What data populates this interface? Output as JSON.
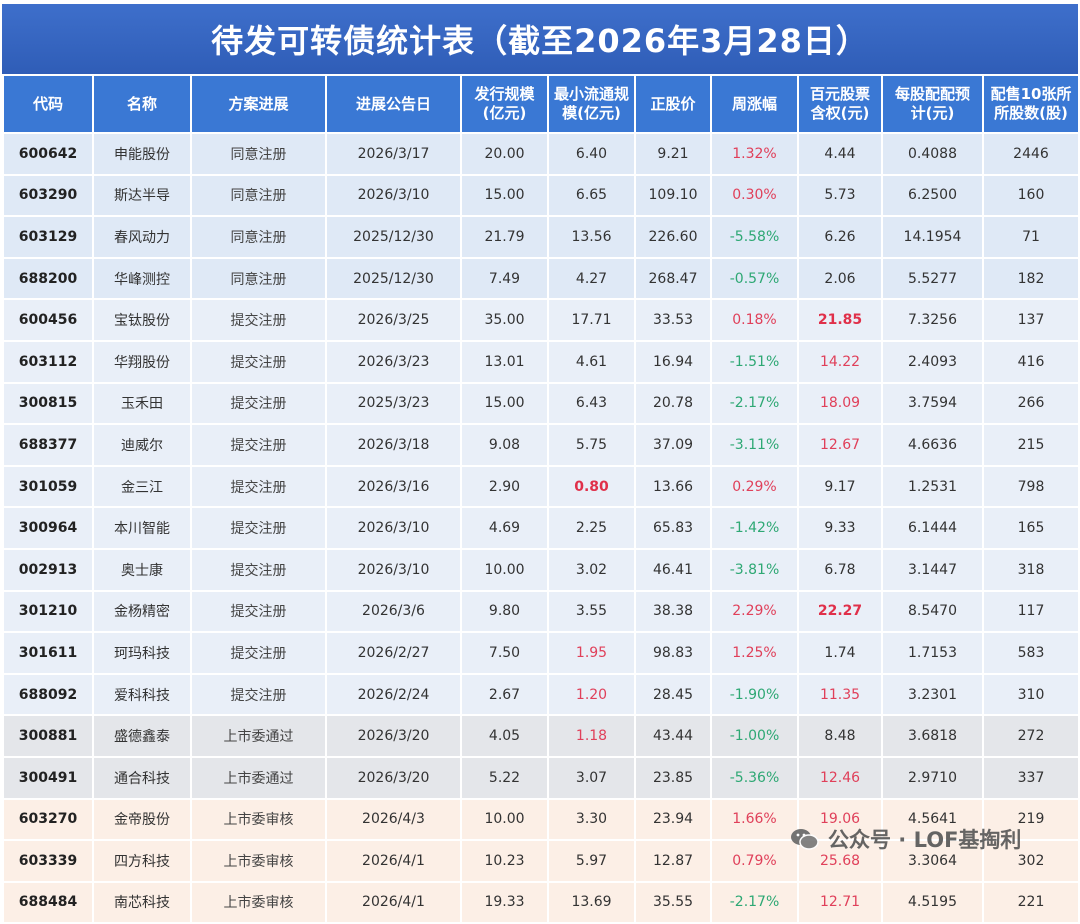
{
  "title": "待发可转债统计表（截至2026年3月28日）",
  "headers": [
    "代码",
    "名称",
    "方案进展",
    "进展公告日",
    "发行规模\n(亿元)",
    "最小流通规\n模(亿元)",
    "正股价",
    "周涨幅",
    "百元股票\n含权(元)",
    "每股配配预\n计(元)",
    "配售10张所\n所股数(股)"
  ],
  "rows": [
    {
      "code": "600642",
      "name": "申能股份",
      "status": "同意注册",
      "date": "2026/3/17",
      "scale": "20.00",
      "float": "6.40",
      "price": "9.21",
      "chg": "1.32%",
      "chg_dir": "up",
      "rights": "4.44",
      "per_share": "0.4088",
      "shares": "2446",
      "group": "agree"
    },
    {
      "code": "603290",
      "name": "斯达半导",
      "status": "同意注册",
      "date": "2026/3/10",
      "scale": "15.00",
      "float": "6.65",
      "price": "109.10",
      "chg": "0.30%",
      "chg_dir": "up",
      "rights": "5.73",
      "per_share": "6.2500",
      "shares": "160",
      "group": "agree"
    },
    {
      "code": "603129",
      "name": "春风动力",
      "status": "同意注册",
      "date": "2025/12/30",
      "scale": "21.79",
      "float": "13.56",
      "price": "226.60",
      "chg": "-5.58%",
      "chg_dir": "down",
      "rights": "6.26",
      "per_share": "14.1954",
      "shares": "71",
      "group": "agree"
    },
    {
      "code": "688200",
      "name": "华峰测控",
      "status": "同意注册",
      "date": "2025/12/30",
      "scale": "7.49",
      "float": "4.27",
      "price": "268.47",
      "chg": "-0.57%",
      "chg_dir": "down",
      "rights": "2.06",
      "per_share": "5.5277",
      "shares": "182",
      "group": "agree"
    },
    {
      "code": "600456",
      "name": "宝钛股份",
      "status": "提交注册",
      "date": "2026/3/25",
      "scale": "35.00",
      "float": "17.71",
      "price": "33.53",
      "chg": "0.18%",
      "chg_dir": "up",
      "rights": "21.85",
      "rights_style": "bold",
      "per_share": "7.3256",
      "shares": "137",
      "group": "submit"
    },
    {
      "code": "603112",
      "name": "华翔股份",
      "status": "提交注册",
      "date": "2026/3/23",
      "scale": "13.01",
      "float": "4.61",
      "price": "16.94",
      "chg": "-1.51%",
      "chg_dir": "down",
      "rights": "14.22",
      "rights_style": "red",
      "per_share": "2.4093",
      "shares": "416",
      "group": "submit"
    },
    {
      "code": "300815",
      "name": "玉禾田",
      "status": "提交注册",
      "date": "2025/3/23",
      "scale": "15.00",
      "float": "6.43",
      "price": "20.78",
      "chg": "-2.17%",
      "chg_dir": "down",
      "rights": "18.09",
      "rights_style": "red",
      "per_share": "3.7594",
      "shares": "266",
      "group": "submit"
    },
    {
      "code": "688377",
      "name": "迪威尔",
      "status": "提交注册",
      "date": "2026/3/18",
      "scale": "9.08",
      "float": "5.75",
      "price": "37.09",
      "chg": "-3.11%",
      "chg_dir": "down",
      "rights": "12.67",
      "rights_style": "red",
      "per_share": "4.6636",
      "shares": "215",
      "group": "submit"
    },
    {
      "code": "301059",
      "name": "金三江",
      "status": "提交注册",
      "date": "2026/3/16",
      "scale": "2.90",
      "float": "0.80",
      "float_style": "bold",
      "price": "13.66",
      "chg": "0.29%",
      "chg_dir": "up",
      "rights": "9.17",
      "per_share": "1.2531",
      "shares": "798",
      "group": "submit"
    },
    {
      "code": "300964",
      "name": "本川智能",
      "status": "提交注册",
      "date": "2026/3/10",
      "scale": "4.69",
      "float": "2.25",
      "price": "65.83",
      "chg": "-1.42%",
      "chg_dir": "down",
      "rights": "9.33",
      "per_share": "6.1444",
      "shares": "165",
      "group": "submit"
    },
    {
      "code": "002913",
      "name": "奥士康",
      "status": "提交注册",
      "date": "2026/3/10",
      "scale": "10.00",
      "float": "3.02",
      "price": "46.41",
      "chg": "-3.81%",
      "chg_dir": "down",
      "rights": "6.78",
      "per_share": "3.1447",
      "shares": "318",
      "group": "submit"
    },
    {
      "code": "301210",
      "name": "金杨精密",
      "status": "提交注册",
      "date": "2026/3/6",
      "scale": "9.80",
      "float": "3.55",
      "price": "38.38",
      "chg": "2.29%",
      "chg_dir": "up",
      "rights": "22.27",
      "rights_style": "bold",
      "per_share": "8.5470",
      "shares": "117",
      "group": "submit"
    },
    {
      "code": "301611",
      "name": "珂玛科技",
      "status": "提交注册",
      "date": "2026/2/27",
      "scale": "7.50",
      "float": "1.95",
      "float_style": "red",
      "price": "98.83",
      "chg": "1.25%",
      "chg_dir": "up",
      "rights": "1.74",
      "per_share": "1.7153",
      "shares": "583",
      "group": "submit"
    },
    {
      "code": "688092",
      "name": "爱科科技",
      "status": "提交注册",
      "date": "2026/2/24",
      "scale": "2.67",
      "float": "1.20",
      "float_style": "red",
      "price": "28.45",
      "chg": "-1.90%",
      "chg_dir": "down",
      "rights": "11.35",
      "rights_style": "red",
      "per_share": "3.2301",
      "shares": "310",
      "group": "submit"
    },
    {
      "code": "300881",
      "name": "盛德鑫泰",
      "status": "上市委通过",
      "date": "2026/3/20",
      "scale": "4.05",
      "float": "1.18",
      "float_style": "red",
      "price": "43.44",
      "chg": "-1.00%",
      "chg_dir": "down",
      "rights": "8.48",
      "per_share": "3.6818",
      "shares": "272",
      "group": "pass"
    },
    {
      "code": "300491",
      "name": "通合科技",
      "status": "上市委通过",
      "date": "2026/3/20",
      "scale": "5.22",
      "float": "3.07",
      "price": "23.85",
      "chg": "-5.36%",
      "chg_dir": "down",
      "rights": "12.46",
      "rights_style": "red",
      "per_share": "2.9710",
      "shares": "337",
      "group": "pass"
    },
    {
      "code": "603270",
      "name": "金帝股份",
      "status": "上市委审核",
      "date": "2026/4/3",
      "scale": "10.00",
      "float": "3.30",
      "price": "23.94",
      "chg": "1.66%",
      "chg_dir": "up",
      "rights": "19.06",
      "rights_style": "red",
      "per_share": "4.5641",
      "shares": "219",
      "group": "review"
    },
    {
      "code": "603339",
      "name": "四方科技",
      "status": "上市委审核",
      "date": "2026/4/1",
      "scale": "10.23",
      "float": "5.97",
      "price": "12.87",
      "chg": "0.79%",
      "chg_dir": "up",
      "rights": "25.68",
      "rights_style": "red",
      "per_share": "3.3064",
      "shares": "302",
      "group": "review"
    },
    {
      "code": "688484",
      "name": "南芯科技",
      "status": "上市委审核",
      "date": "2026/4/1",
      "scale": "19.33",
      "float": "13.69",
      "price": "35.55",
      "chg": "-2.17%",
      "chg_dir": "down",
      "rights": "12.71",
      "rights_style": "red",
      "per_share": "4.5195",
      "shares": "221",
      "group": "review"
    }
  ],
  "watermark": {
    "text": "公众号 · LOF基掏利",
    "icon": "wechat-icon"
  }
}
